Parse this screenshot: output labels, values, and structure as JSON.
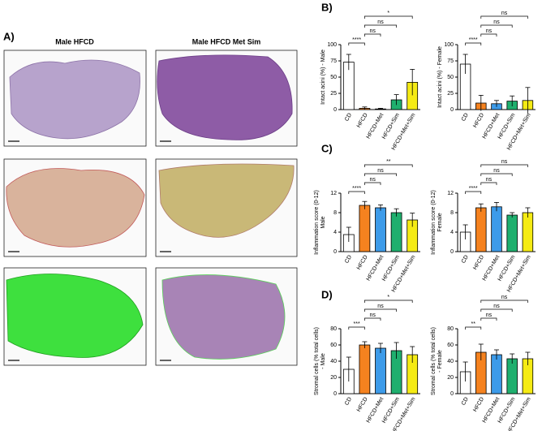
{
  "panel_labels": [
    "A)",
    "B)",
    "C)",
    "D)"
  ],
  "image_titles": [
    "Male HFCD",
    "Male HFCD Met Sim"
  ],
  "chart_data": [
    {
      "type": "bar",
      "ylabel_lines": [
        "Intact acini (%) - Male"
      ],
      "categories": [
        "CD",
        "HFCD",
        "HFCD+Met",
        "HFCD+Sim",
        "HFCD+Met+Sim"
      ],
      "colors": [
        "#ffffff",
        "#f5821f",
        "#3d9be9",
        "#1faf6e",
        "#f5eb14"
      ],
      "values": [
        73,
        2,
        1,
        15,
        42
      ],
      "errors": [
        12,
        2,
        1,
        8,
        20
      ],
      "ylim": [
        0,
        100
      ],
      "yticks": [
        0,
        25,
        50,
        75,
        100
      ],
      "brackets": [
        {
          "label": "****",
          "categories": [
            "CD",
            "HFCD"
          ]
        },
        {
          "label": "ns",
          "categories": [
            "HFCD",
            "HFCD+Met"
          ]
        },
        {
          "label": "ns",
          "categories": [
            "HFCD",
            "HFCD+Sim"
          ]
        },
        {
          "label": "*",
          "categories": [
            "HFCD",
            "HFCD+Met+Sim"
          ]
        }
      ]
    },
    {
      "type": "bar",
      "ylabel_lines": [
        "Intact acini (%) - Female"
      ],
      "categories": [
        "CD",
        "HFCD",
        "HFCD+Met",
        "HFCD+Sim",
        "HFCD+Met+Sim"
      ],
      "colors": [
        "#ffffff",
        "#f5821f",
        "#3d9be9",
        "#1faf6e",
        "#f5eb14"
      ],
      "values": [
        70,
        10,
        9,
        13,
        14
      ],
      "errors": [
        15,
        12,
        5,
        8,
        20
      ],
      "ylim": [
        0,
        100
      ],
      "yticks": [
        0,
        25,
        50,
        75,
        100
      ],
      "brackets": [
        {
          "label": "****",
          "categories": [
            "CD",
            "HFCD"
          ]
        },
        {
          "label": "ns",
          "categories": [
            "HFCD",
            "HFCD+Met"
          ]
        },
        {
          "label": "ns",
          "categories": [
            "HFCD",
            "HFCD+Sim"
          ]
        },
        {
          "label": "ns",
          "categories": [
            "HFCD",
            "HFCD+Met+Sim"
          ]
        }
      ]
    },
    {
      "type": "bar",
      "ylabel_lines": [
        "Inflammation score (0-12)",
        "Male"
      ],
      "categories": [
        "CD",
        "HFCD",
        "HFCD+Met",
        "HFCD+Sim",
        "HFCD+Met+Sim"
      ],
      "colors": [
        "#ffffff",
        "#f5821f",
        "#3d9be9",
        "#1faf6e",
        "#f5eb14"
      ],
      "values": [
        3.5,
        9.5,
        9,
        8,
        6.5
      ],
      "errors": [
        1.5,
        0.8,
        0.6,
        0.8,
        1.4
      ],
      "ylim": [
        0,
        12
      ],
      "yticks": [
        0,
        4,
        8,
        12
      ],
      "brackets": [
        {
          "label": "****",
          "categories": [
            "CD",
            "HFCD"
          ]
        },
        {
          "label": "ns",
          "categories": [
            "HFCD",
            "HFCD+Met"
          ]
        },
        {
          "label": "ns",
          "categories": [
            "HFCD",
            "HFCD+Sim"
          ]
        },
        {
          "label": "**",
          "categories": [
            "HFCD",
            "HFCD+Met+Sim"
          ]
        }
      ]
    },
    {
      "type": "bar",
      "ylabel_lines": [
        "Inflammation score (0-12)",
        "Female"
      ],
      "categories": [
        "CD",
        "HFCD",
        "HFCD+Met",
        "HFCD+Sim",
        "HFCD+Met+Sim"
      ],
      "colors": [
        "#ffffff",
        "#f5821f",
        "#3d9be9",
        "#1faf6e",
        "#f5eb14"
      ],
      "values": [
        4,
        9,
        9.2,
        7.5,
        8
      ],
      "errors": [
        1.5,
        0.8,
        0.9,
        0.5,
        1
      ],
      "ylim": [
        0,
        12
      ],
      "yticks": [
        0,
        4,
        8,
        12
      ],
      "brackets": [
        {
          "label": "****",
          "categories": [
            "CD",
            "HFCD"
          ]
        },
        {
          "label": "ns",
          "categories": [
            "HFCD",
            "HFCD+Met"
          ]
        },
        {
          "label": "ns",
          "categories": [
            "HFCD",
            "HFCD+Sim"
          ]
        },
        {
          "label": "ns",
          "categories": [
            "HFCD",
            "HFCD+Met+Sim"
          ]
        }
      ]
    },
    {
      "type": "bar",
      "ylabel_lines": [
        "Stromal cells (% total cells)",
        "- Male"
      ],
      "categories": [
        "CD",
        "HFCD",
        "HFCD+Met",
        "HFCD+Sim",
        "HFCD+Met+Sim"
      ],
      "colors": [
        "#ffffff",
        "#f5821f",
        "#3d9be9",
        "#1faf6e",
        "#f5eb14"
      ],
      "values": [
        30,
        60,
        56,
        53,
        48
      ],
      "errors": [
        15,
        4,
        6,
        10,
        10
      ],
      "ylim": [
        0,
        80
      ],
      "yticks": [
        0,
        20,
        40,
        60,
        80
      ],
      "brackets": [
        {
          "label": "***",
          "categories": [
            "CD",
            "HFCD"
          ]
        },
        {
          "label": "ns",
          "categories": [
            "HFCD",
            "HFCD+Met"
          ]
        },
        {
          "label": "ns",
          "categories": [
            "HFCD",
            "HFCD+Sim"
          ]
        },
        {
          "label": "*",
          "categories": [
            "HFCD",
            "HFCD+Met+Sim"
          ]
        }
      ]
    },
    {
      "type": "bar",
      "ylabel_lines": [
        "Stromal cells (% total cells)",
        "- Female"
      ],
      "categories": [
        "CD",
        "HFCD",
        "HFCD+Met",
        "HFCD+Sim",
        "HFCD+Met+Sim"
      ],
      "colors": [
        "#ffffff",
        "#f5821f",
        "#3d9be9",
        "#1faf6e",
        "#f5eb14"
      ],
      "values": [
        27,
        51,
        48,
        43,
        43
      ],
      "errors": [
        12,
        10,
        6,
        6,
        8
      ],
      "ylim": [
        0,
        80
      ],
      "yticks": [
        0,
        20,
        40,
        60,
        80
      ],
      "brackets": [
        {
          "label": "**",
          "categories": [
            "CD",
            "HFCD"
          ]
        },
        {
          "label": "ns",
          "categories": [
            "HFCD",
            "HFCD+Met"
          ]
        },
        {
          "label": "ns",
          "categories": [
            "HFCD",
            "HFCD+Sim"
          ]
        },
        {
          "label": "ns",
          "categories": [
            "HFCD",
            "HFCD+Met+Sim"
          ]
        }
      ]
    }
  ]
}
